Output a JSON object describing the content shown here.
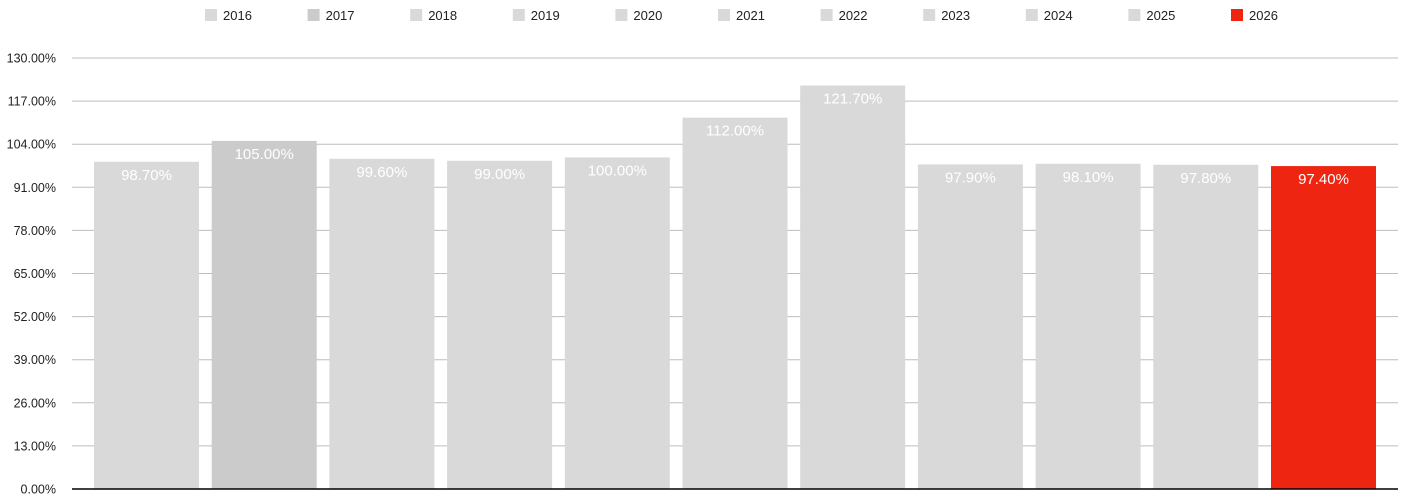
{
  "chart_data": {
    "type": "bar",
    "title": "",
    "xlabel": "",
    "ylabel": "",
    "categories": [
      "2016",
      "2017",
      "2018",
      "2019",
      "2020",
      "2021",
      "2022",
      "2023",
      "2024",
      "2025",
      "2026"
    ],
    "values": [
      98.7,
      105.0,
      99.6,
      99.0,
      100.0,
      112.0,
      121.7,
      97.9,
      98.1,
      97.8,
      97.4
    ],
    "value_labels": [
      "98.70%",
      "105.00%",
      "99.60%",
      "99.00%",
      "100.00%",
      "112.00%",
      "121.70%",
      "97.90%",
      "98.10%",
      "97.80%",
      "97.40%"
    ],
    "colors": [
      "#d9d9d9",
      "#cbcbcb",
      "#d9d9d9",
      "#d9d9d9",
      "#d9d9d9",
      "#d9d9d9",
      "#d9d9d9",
      "#d9d9d9",
      "#d9d9d9",
      "#d9d9d9",
      "#ee2611"
    ],
    "legend": {
      "placement": "top",
      "entries": [
        "2016",
        "2017",
        "2018",
        "2019",
        "2020",
        "2021",
        "2022",
        "2023",
        "2024",
        "2025",
        "2026"
      ]
    },
    "ylim": [
      0,
      130
    ],
    "yticks": [
      0,
      13,
      26,
      39,
      52,
      65,
      78,
      91,
      104,
      117,
      130
    ],
    "ytick_labels": [
      "0.00%",
      "13.00%",
      "26.00%",
      "39.00%",
      "52.00%",
      "65.00%",
      "78.00%",
      "91.00%",
      "104.00%",
      "117.00%",
      "130.00%"
    ],
    "grid": true,
    "grid_color": "#bdbdbd",
    "axis_color": "#000000"
  }
}
